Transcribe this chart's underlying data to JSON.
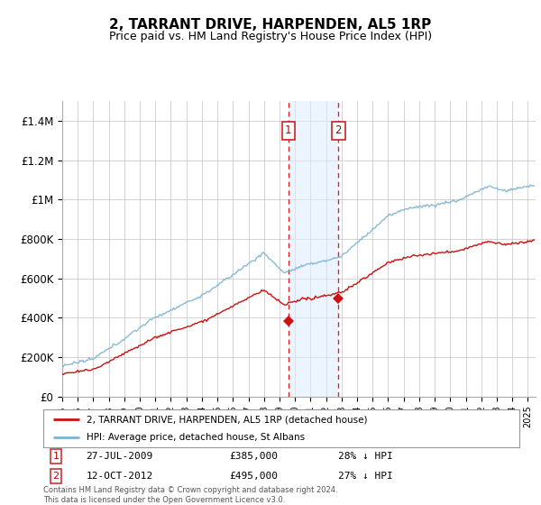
{
  "title": "2, TARRANT DRIVE, HARPENDEN, AL5 1RP",
  "subtitle": "Price paid vs. HM Land Registry's House Price Index (HPI)",
  "title_fontsize": 11,
  "subtitle_fontsize": 9,
  "ylabel_ticks": [
    "£0",
    "£200K",
    "£400K",
    "£600K",
    "£800K",
    "£1M",
    "£1.2M",
    "£1.4M"
  ],
  "ytick_vals": [
    0,
    200000,
    400000,
    600000,
    800000,
    1000000,
    1200000,
    1400000
  ],
  "ylim": [
    0,
    1500000
  ],
  "xlim_start": 1995.0,
  "xlim_end": 2025.5,
  "hpi_color": "#7ab3d4",
  "price_color": "#cc1111",
  "sale1_date": 2009.57,
  "sale1_price": 385000,
  "sale2_date": 2012.79,
  "sale2_price": 495000,
  "legend_line1": "2, TARRANT DRIVE, HARPENDEN, AL5 1RP (detached house)",
  "legend_line2": "HPI: Average price, detached house, St Albans",
  "footer": "Contains HM Land Registry data © Crown copyright and database right 2024.\nThis data is licensed under the Open Government Licence v3.0.",
  "bg_color": "#ffffff",
  "grid_color": "#cccccc",
  "shading_color": "#ddeeff"
}
